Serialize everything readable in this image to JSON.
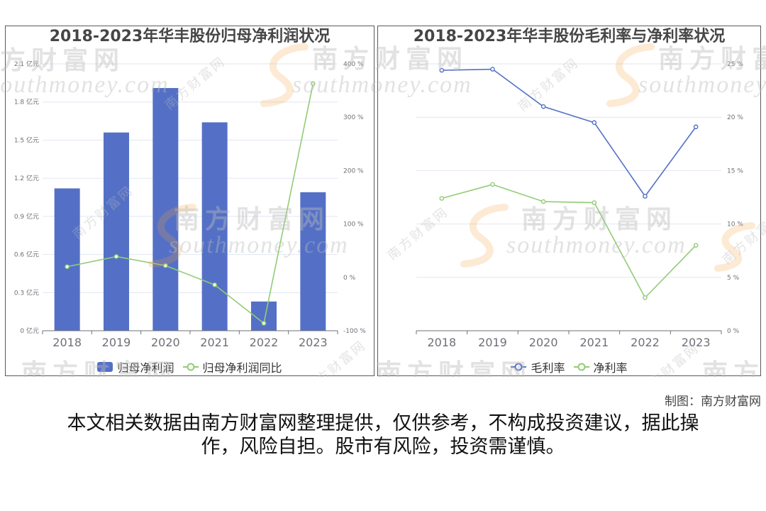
{
  "watermark": {
    "cn": "南方财富网",
    "en": "southmoney.com"
  },
  "chart_data": [
    {
      "type": "bar",
      "title": "2018-2023年华丰股份归母净利润状况",
      "categories": [
        "2018",
        "2019",
        "2020",
        "2021",
        "2022",
        "2023"
      ],
      "series": [
        {
          "name": "归母净利润",
          "type": "bar",
          "axis": "left",
          "values": [
            1.12,
            1.56,
            1.91,
            1.64,
            0.23,
            1.09
          ],
          "color": "#5470c6"
        },
        {
          "name": "归母净利润同比",
          "type": "line",
          "axis": "right",
          "values": [
            20,
            39,
            22,
            -14,
            -86,
            363
          ],
          "color": "#91cc75"
        }
      ],
      "y_left": {
        "min": 0,
        "max": 2.1,
        "ticks": [
          0,
          0.3,
          0.6,
          0.9,
          1.2,
          1.5,
          1.8,
          2.1
        ],
        "tick_labels": [
          "0 亿元",
          "0.3 亿元",
          "0.6 亿元",
          "0.9 亿元",
          "1.2 亿元",
          "1.5 亿元",
          "1.8 亿元",
          "2.1 亿元"
        ]
      },
      "y_right": {
        "min": -100,
        "max": 400,
        "ticks": [
          -100,
          0,
          100,
          200,
          300,
          400
        ],
        "tick_labels": [
          "-100 %",
          "0 %",
          "100 %",
          "200 %",
          "300 %",
          "400 %"
        ]
      },
      "grid": true,
      "legend": "bottom"
    },
    {
      "type": "line",
      "title": "2018-2023年华丰股份毛利率与净利率状况",
      "categories": [
        "2018",
        "2019",
        "2020",
        "2021",
        "2022",
        "2023"
      ],
      "series": [
        {
          "name": "毛利率",
          "type": "line",
          "axis": "right",
          "values": [
            24.4,
            24.5,
            21.0,
            19.5,
            12.6,
            19.1
          ],
          "color": "#5470c6"
        },
        {
          "name": "净利率",
          "type": "line",
          "axis": "right",
          "values": [
            12.4,
            13.7,
            12.1,
            12.0,
            3.1,
            8.0
          ],
          "color": "#91cc75"
        }
      ],
      "y_right": {
        "min": 0,
        "max": 25,
        "ticks": [
          0,
          5,
          10,
          15,
          20,
          25
        ],
        "tick_labels": [
          "0 %",
          "5 %",
          "10 %",
          "15 %",
          "20 %",
          "25 %"
        ]
      },
      "grid": true,
      "legend": "bottom"
    }
  ],
  "footer": {
    "credit": "制图：南方财富网",
    "disclaimer": "本文相关数据由南方财富网整理提供，仅供参考，不构成投资建议，据此操作，风险自担。股市有风险，投资需谨慎。"
  }
}
